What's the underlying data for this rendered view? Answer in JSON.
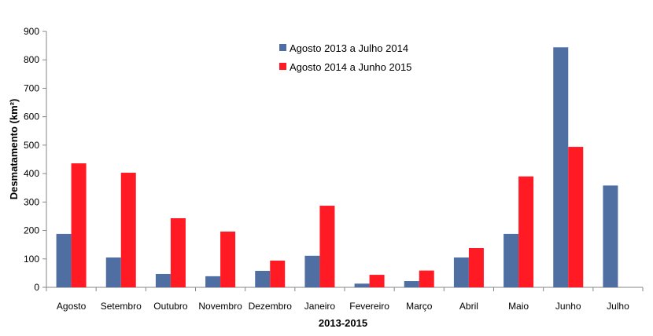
{
  "chart_data": {
    "type": "bar",
    "title": "",
    "xlabel": "2013-2015",
    "ylabel": "Desmatamento (km²)",
    "ylim": [
      0,
      900
    ],
    "yticks": [
      0,
      100,
      200,
      300,
      400,
      500,
      600,
      700,
      800,
      900
    ],
    "grid": false,
    "legend_position": "top-center",
    "categories": [
      "Agosto",
      "Setembro",
      "Outubro",
      "Novembro",
      "Dezembro",
      "Janeiro",
      "Fevereiro",
      "Março",
      "Abril",
      "Maio",
      "Junho",
      "Julho"
    ],
    "series": [
      {
        "name": "Agosto 2013 a Julho 2014",
        "color": "#4f6fa3",
        "values": [
          188,
          105,
          47,
          39,
          58,
          111,
          13,
          22,
          105,
          188,
          844,
          358
        ]
      },
      {
        "name": "Agosto 2014 a Junho 2015",
        "color": "#ff1a24",
        "values": [
          436,
          403,
          243,
          196,
          94,
          287,
          44,
          59,
          138,
          390,
          494,
          null
        ]
      }
    ]
  }
}
